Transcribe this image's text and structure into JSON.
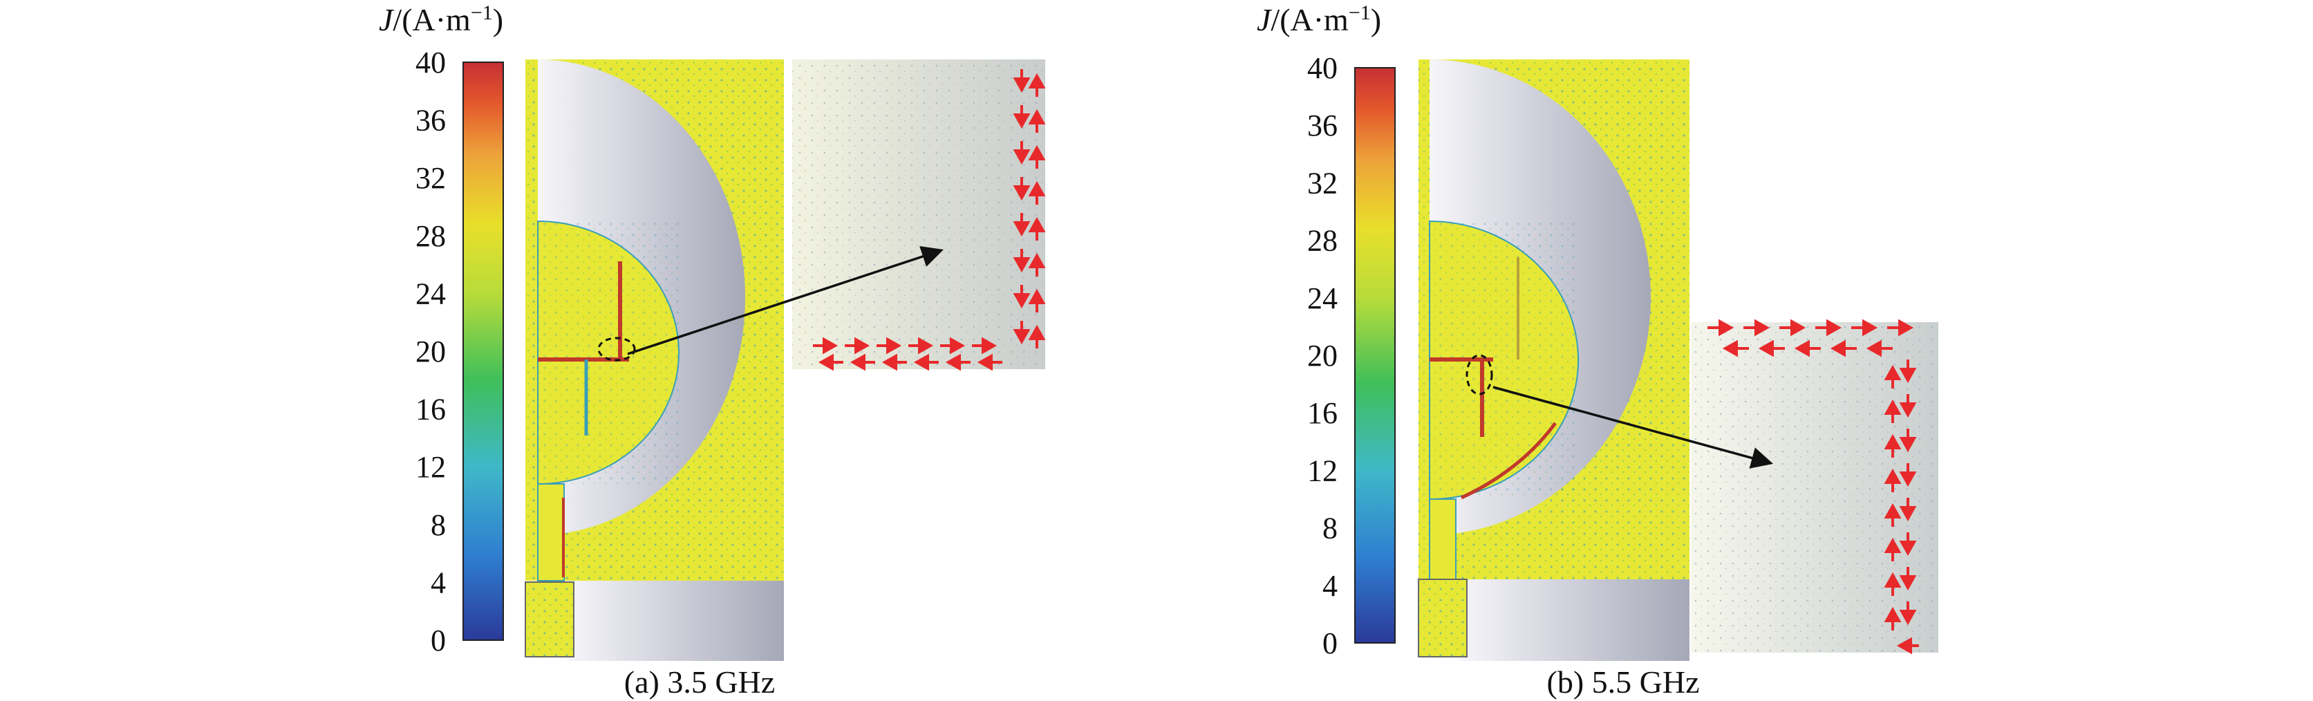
{
  "figures": [
    {
      "id": "a",
      "caption": "(a) 3.5 GHz",
      "unit_label": {
        "sym": "J",
        "rest": "/(A·m",
        "sup": "−1",
        "close": ")"
      },
      "colorbar": {
        "ticks": [
          "40",
          "36",
          "32",
          "28",
          "24",
          "20",
          "16",
          "12",
          "8",
          "4",
          "0"
        ],
        "min": 0,
        "max": 40,
        "colors": [
          "#2b3a9a",
          "#2f7fd0",
          "#3fb8c8",
          "#3fbf5a",
          "#b8dc3a",
          "#e8df2a",
          "#eda23a",
          "#e3572c",
          "#c63034"
        ]
      }
    },
    {
      "id": "b",
      "caption": "(b) 5.5 GHz",
      "unit_label": {
        "sym": "J",
        "rest": "/(A·m",
        "sup": "−1",
        "close": ")"
      },
      "colorbar": {
        "ticks": [
          "40",
          "36",
          "32",
          "28",
          "24",
          "20",
          "16",
          "12",
          "8",
          "4",
          "0"
        ],
        "min": 0,
        "max": 40,
        "colors": [
          "#2b3a9a",
          "#2f7fd0",
          "#3fb8c8",
          "#3fbf5a",
          "#b8dc3a",
          "#e8df2a",
          "#eda23a",
          "#e3572c",
          "#c63034"
        ]
      }
    }
  ],
  "colors": {
    "surface": "#e6e835",
    "metal_light": "#f4f4f8",
    "metal_dark": "#a9abbb",
    "zoom_bg": "#eef0e2",
    "arrow_red": "#e8292c",
    "feed_red": "#c0392b",
    "pointer": "#111111"
  }
}
